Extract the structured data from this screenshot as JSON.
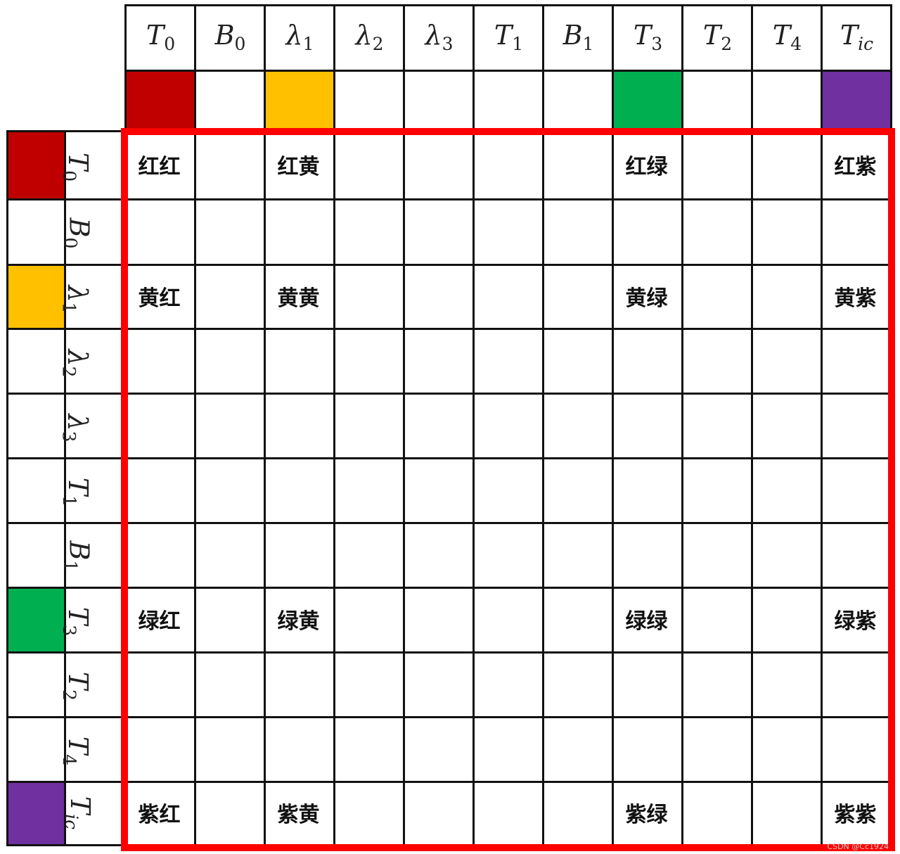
{
  "labels": [
    {
      "base": "T",
      "sub": "0"
    },
    {
      "base": "B",
      "sub": "0"
    },
    {
      "base": "λ",
      "sub": "1"
    },
    {
      "base": "λ",
      "sub": "2"
    },
    {
      "base": "λ",
      "sub": "3"
    },
    {
      "base": "T",
      "sub": "1"
    },
    {
      "base": "B",
      "sub": "1"
    },
    {
      "base": "T",
      "sub": "3"
    },
    {
      "base": "T",
      "sub": "2"
    },
    {
      "base": "T",
      "sub": "4"
    },
    {
      "base": "T",
      "sub": "ic",
      "sub_italic": true
    }
  ],
  "colors": [
    "#C00000",
    null,
    "#FFC000",
    null,
    null,
    null,
    null,
    "#00B050",
    null,
    null,
    "#7030A0"
  ],
  "cells": {
    "0": {
      "0": "红红",
      "2": "红黄",
      "7": "红绿",
      "10": "红紫"
    },
    "2": {
      "0": "黄红",
      "2": "黄黄",
      "7": "黄绿",
      "10": "黄紫"
    },
    "7": {
      "0": "绿红",
      "2": "绿黄",
      "7": "绿绿",
      "10": "绿紫"
    },
    "10": {
      "0": "紫红",
      "2": "紫黄",
      "7": "紫绿",
      "10": "紫紫"
    }
  },
  "highlight_color": "#FF0000",
  "watermark": "CSDN @Cc1924"
}
